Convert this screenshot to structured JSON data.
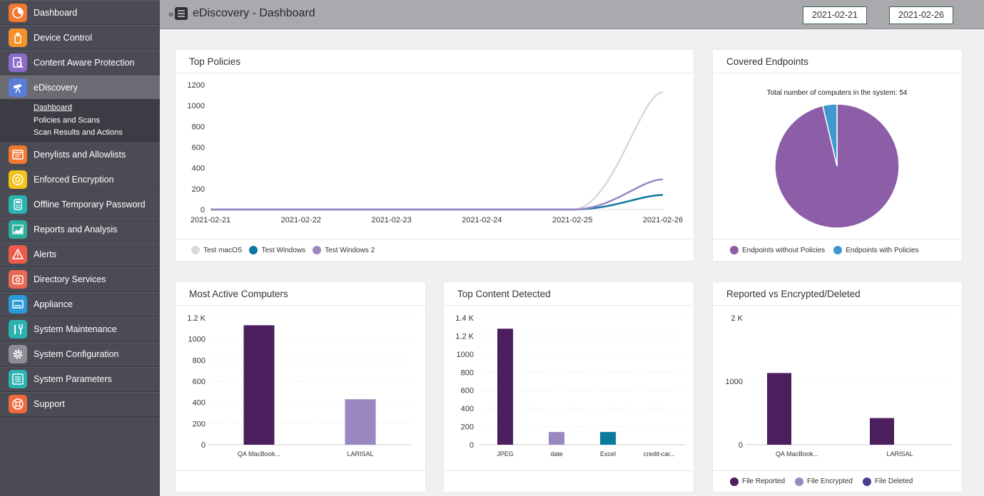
{
  "colors": {
    "sidebar_bg": "#4b4b55",
    "header_bg": "#a9a9ae",
    "dark_purple": "#4b1e5e",
    "light_purple": "#9a88c2",
    "teal": "#0b7aa0",
    "pie_purple": "#8d5ea8",
    "pie_blue": "#3f98cf",
    "gray_line": "#d9d9d9"
  },
  "sidebar": {
    "items": [
      {
        "label": "Dashboard",
        "icon": "dashboard-icon",
        "color": "#f07830"
      },
      {
        "label": "Device Control",
        "icon": "usb-icon",
        "color": "#f5902a"
      },
      {
        "label": "Content Aware Protection",
        "icon": "document-search-icon",
        "color": "#8a6cc8"
      },
      {
        "label": "eDiscovery",
        "icon": "telescope-icon",
        "color": "#5a7ed8"
      },
      {
        "label": "Denylists and Allowlists",
        "icon": "list-window-icon",
        "color": "#f07830"
      },
      {
        "label": "Enforced Encryption",
        "icon": "disc-icon",
        "color": "#f3c21b"
      },
      {
        "label": "Offline Temporary Password",
        "icon": "password-device-icon",
        "color": "#2bb3b0"
      },
      {
        "label": "Reports and Analysis",
        "icon": "chart-icon",
        "color": "#2ab09c"
      },
      {
        "label": "Alerts",
        "icon": "alert-icon",
        "color": "#ee5a4a"
      },
      {
        "label": "Directory Services",
        "icon": "directory-icon",
        "color": "#e86a55"
      },
      {
        "label": "Appliance",
        "icon": "appliance-icon",
        "color": "#2b9ad8"
      },
      {
        "label": "System Maintenance",
        "icon": "tools-icon",
        "color": "#2bb3b0"
      },
      {
        "label": "System Configuration",
        "icon": "gear-icon",
        "color": "#8e8e96"
      },
      {
        "label": "System Parameters",
        "icon": "parameters-icon",
        "color": "#2bb3b0"
      },
      {
        "label": "Support",
        "icon": "lifebuoy-icon",
        "color": "#ee6a3a"
      }
    ],
    "subitems": [
      "Dashboard",
      "Policies and Scans",
      "Scan Results and Actions"
    ]
  },
  "header": {
    "collapse_glyph": "«",
    "title": "eDiscovery - Dashboard",
    "date_from": "2021-02-21",
    "date_to": "2021-02-26"
  },
  "cards": {
    "top_policies": {
      "title": "Top Policies"
    },
    "covered_endpoints": {
      "title": "Covered Endpoints"
    },
    "most_active": {
      "title": "Most Active Computers"
    },
    "top_content": {
      "title": "Top Content Detected"
    },
    "reported": {
      "title": "Reported vs Encrypted/Deleted"
    }
  },
  "chart_data": [
    {
      "id": "top-policies",
      "type": "line",
      "title": "Top Policies",
      "x": [
        "2021-02-21",
        "2021-02-22",
        "2021-02-23",
        "2021-02-24",
        "2021-02-25",
        "2021-02-26"
      ],
      "y_ticks": [
        "0",
        "200",
        "400",
        "600",
        "800",
        "1000",
        "1200"
      ],
      "ylim": [
        0,
        1200
      ],
      "series": [
        {
          "name": "Test macOS",
          "values": [
            0,
            0,
            0,
            0,
            0,
            1130
          ],
          "color": "#d9d9d9"
        },
        {
          "name": "Test Windows",
          "values": [
            0,
            0,
            0,
            0,
            0,
            140
          ],
          "color": "#0b7aa0"
        },
        {
          "name": "Test Windows 2",
          "values": [
            0,
            0,
            0,
            0,
            0,
            290
          ],
          "color": "#9a88c2"
        }
      ]
    },
    {
      "id": "covered-endpoints",
      "type": "pie",
      "title": "Covered Endpoints",
      "subtitle": "Total number of computers in the system: 54",
      "slices": [
        {
          "name": "Endpoints without Policies",
          "value": 52,
          "color": "#8d5ea8"
        },
        {
          "name": "Endpoints with Policies",
          "value": 2,
          "color": "#3f98cf"
        }
      ]
    },
    {
      "id": "most-active",
      "type": "bar",
      "title": "Most Active Computers",
      "categories": [
        "QA MacBook...",
        "LARISAL"
      ],
      "values": [
        1130,
        430
      ],
      "colors": [
        "#4b1e5e",
        "#9a88c2"
      ],
      "y_ticks": [
        "0",
        "200",
        "400",
        "600",
        "800",
        "1000",
        "1.2 K"
      ],
      "ylim": [
        0,
        1200
      ]
    },
    {
      "id": "top-content",
      "type": "bar",
      "title": "Top Content Detected",
      "categories": [
        "JPEG",
        "date",
        "Excel",
        "credit-car..."
      ],
      "values": [
        1280,
        140,
        140,
        0
      ],
      "colors": [
        "#4b1e5e",
        "#9a88c2",
        "#0b7aa0",
        "#9a88c2"
      ],
      "y_ticks": [
        "0",
        "200",
        "400",
        "600",
        "800",
        "1000",
        "1.2 K",
        "1.4 K"
      ],
      "ylim": [
        0,
        1400
      ]
    },
    {
      "id": "reported",
      "type": "bar",
      "title": "Reported vs Encrypted/Deleted",
      "categories": [
        "QA MacBook...",
        "LARISAL"
      ],
      "series": [
        {
          "name": "File Reported",
          "values": [
            1130,
            420
          ],
          "color": "#4b1e5e"
        },
        {
          "name": "File Encrypted",
          "values": [
            0,
            0
          ],
          "color": "#9a88c2"
        },
        {
          "name": "File Deleted",
          "values": [
            0,
            0
          ],
          "color": "#4a3f8f"
        }
      ],
      "y_ticks": [
        "0",
        "1000",
        "2 K"
      ],
      "ylim": [
        0,
        2000
      ]
    }
  ]
}
